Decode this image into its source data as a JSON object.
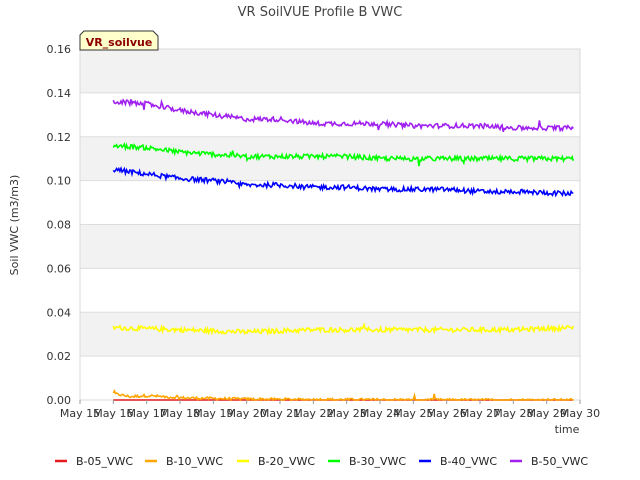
{
  "chart_data": {
    "type": "line",
    "title": "VR SoilVUE Profile B VWC",
    "xlabel": "time",
    "ylabel": "Soil VWC (m3/m3)",
    "badge": "VR_soilvue",
    "ylim": [
      0,
      0.16
    ],
    "yticks": [
      "0.00",
      "0.02",
      "0.04",
      "0.06",
      "0.08",
      "0.10",
      "0.12",
      "0.14",
      "0.16"
    ],
    "xlim": [
      "2024-05-15",
      "2024-05-30"
    ],
    "xticks": [
      "May 15",
      "May 16",
      "May 17",
      "May 18",
      "May 19",
      "May 20",
      "May 21",
      "May 22",
      "May 23",
      "May 24",
      "May 25",
      "May 26",
      "May 27",
      "May 28",
      "May 29",
      "May 30"
    ],
    "grid": true,
    "legend": "bottom",
    "series": [
      {
        "name": "B-05_VWC",
        "color": "#e41a1c",
        "x": [
          "2024-05-16",
          "2024-05-29.8"
        ],
        "values": [
          0.0,
          0.0
        ]
      },
      {
        "name": "B-10_VWC",
        "color": "#ffa500",
        "x": [
          "2024-05-16",
          "2024-05-16.5",
          "2024-05-17",
          "2024-05-18",
          "2024-05-19",
          "2024-05-20",
          "2024-05-22",
          "2024-05-24",
          "2024-05-26",
          "2024-05-29.8"
        ],
        "values": [
          0.003,
          0.0015,
          0.002,
          0.001,
          0.0007,
          0.0004,
          0.0002,
          0.0001,
          0.0,
          0.0
        ]
      },
      {
        "name": "B-20_VWC",
        "color": "#ffff00",
        "x": [
          "2024-05-16",
          "2024-05-18",
          "2024-05-20",
          "2024-05-22",
          "2024-05-24",
          "2024-05-26",
          "2024-05-28",
          "2024-05-29.8"
        ],
        "values": [
          0.033,
          0.032,
          0.031,
          0.032,
          0.032,
          0.032,
          0.032,
          0.033
        ]
      },
      {
        "name": "B-30_VWC",
        "color": "#00ff00",
        "x": [
          "2024-05-16",
          "2024-05-17",
          "2024-05-18",
          "2024-05-19",
          "2024-05-20",
          "2024-05-21",
          "2024-05-22",
          "2024-05-23",
          "2024-05-24",
          "2024-05-25",
          "2024-05-26",
          "2024-05-27",
          "2024-05-28",
          "2024-05-29.8"
        ],
        "values": [
          0.116,
          0.115,
          0.113,
          0.112,
          0.111,
          0.111,
          0.111,
          0.111,
          0.11,
          0.11,
          0.11,
          0.11,
          0.11,
          0.11
        ]
      },
      {
        "name": "B-40_VWC",
        "color": "#0000ff",
        "x": [
          "2024-05-16",
          "2024-05-17",
          "2024-05-18",
          "2024-05-19",
          "2024-05-20",
          "2024-05-21",
          "2024-05-22",
          "2024-05-23",
          "2024-05-24",
          "2024-05-25",
          "2024-05-26",
          "2024-05-27",
          "2024-05-28",
          "2024-05-29.8"
        ],
        "values": [
          0.105,
          0.103,
          0.101,
          0.1,
          0.098,
          0.098,
          0.097,
          0.097,
          0.096,
          0.096,
          0.096,
          0.095,
          0.095,
          0.094
        ]
      },
      {
        "name": "B-50_VWC",
        "color": "#a020f0",
        "x": [
          "2024-05-16",
          "2024-05-17",
          "2024-05-18",
          "2024-05-19",
          "2024-05-20",
          "2024-05-21",
          "2024-05-22",
          "2024-05-23",
          "2024-05-24",
          "2024-05-25",
          "2024-05-26",
          "2024-05-27",
          "2024-05-28",
          "2024-05-29.8"
        ],
        "values": [
          0.136,
          0.135,
          0.132,
          0.13,
          0.128,
          0.128,
          0.126,
          0.126,
          0.126,
          0.125,
          0.125,
          0.125,
          0.124,
          0.124
        ]
      }
    ]
  }
}
